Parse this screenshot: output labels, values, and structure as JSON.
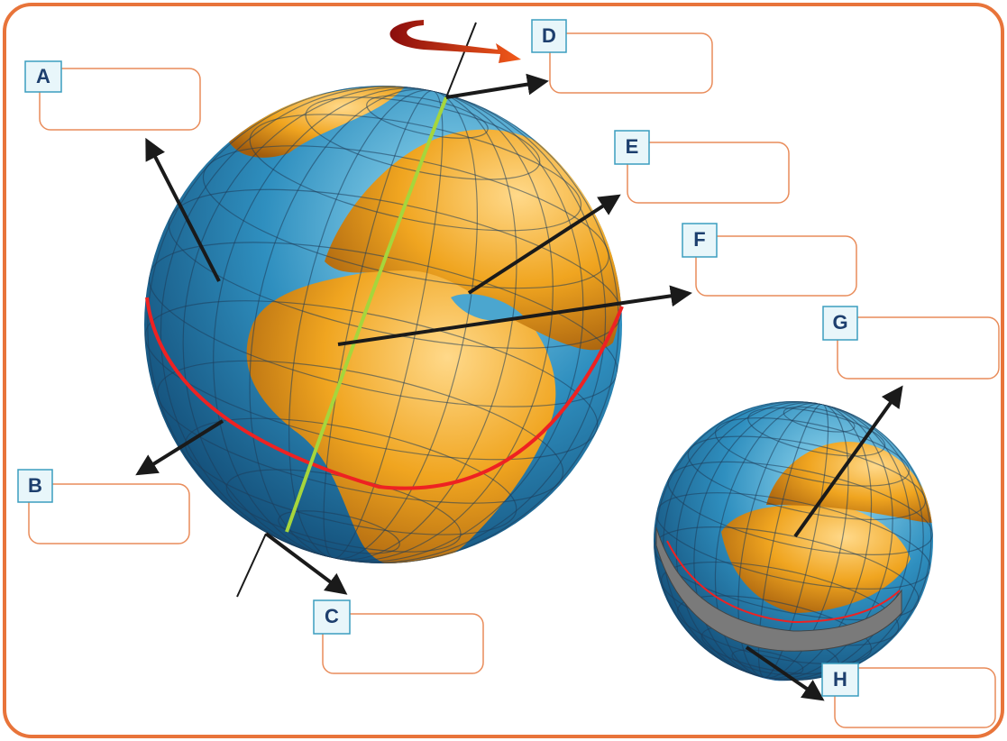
{
  "labels": [
    {
      "letter": "A"
    },
    {
      "letter": "B"
    },
    {
      "letter": "C"
    },
    {
      "letter": "D"
    },
    {
      "letter": "E"
    },
    {
      "letter": "F"
    },
    {
      "letter": "G"
    },
    {
      "letter": "H"
    }
  ]
}
